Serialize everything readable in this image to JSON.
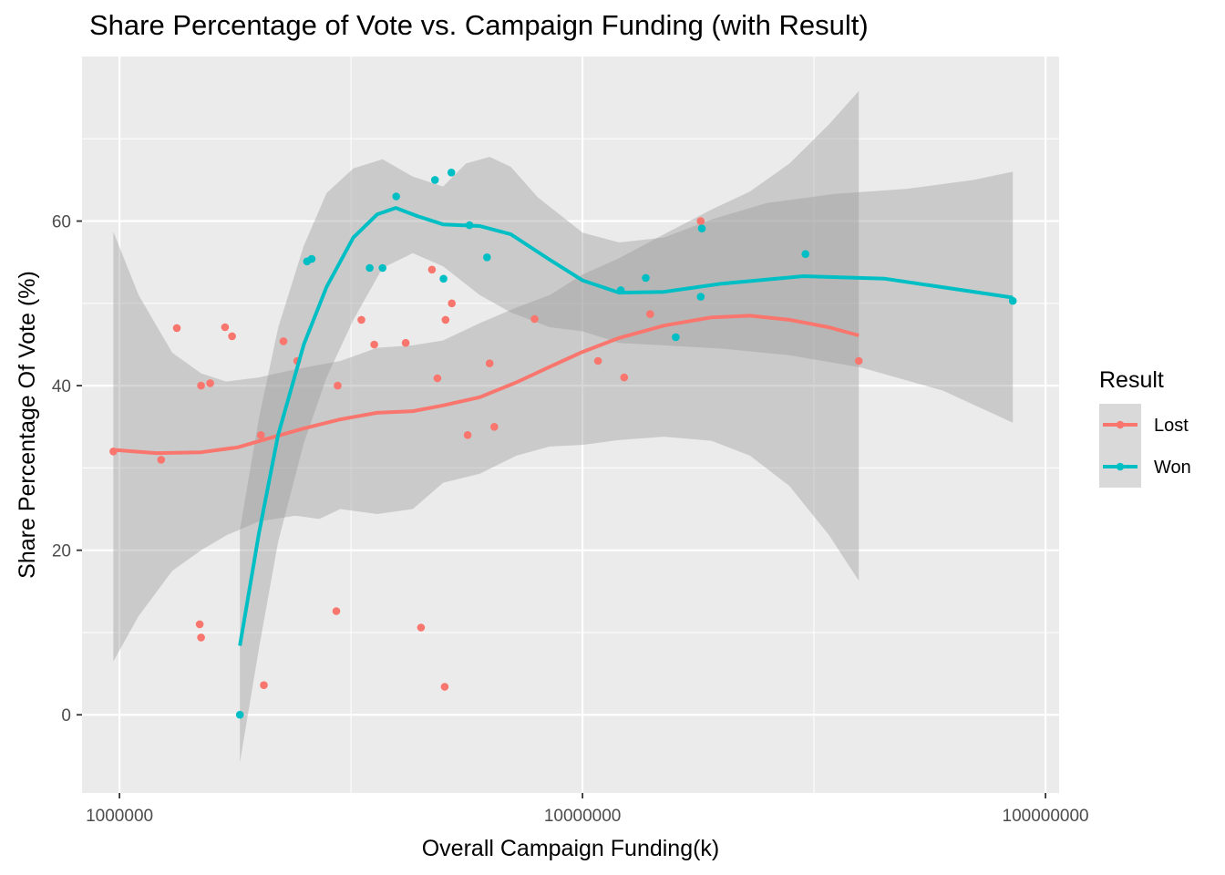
{
  "chart_data": {
    "type": "scatter",
    "title": "Share Percentage of Vote vs. Campaign Funding (with Result)",
    "xlabel": "Overall Campaign Funding(k)",
    "ylabel": "Share Percentage Of Vote (%)",
    "x_scale": "log10",
    "xlim": [
      830000,
      107000000
    ],
    "ylim": [
      -9.5,
      80
    ],
    "x_ticks": [
      1000000,
      10000000,
      100000000
    ],
    "x_tick_labels": [
      "1000000",
      "10000000",
      "100000000"
    ],
    "y_ticks": [
      0,
      20,
      40,
      60
    ],
    "y_tick_labels": [
      "0",
      "20",
      "40",
      "60"
    ],
    "grid": true,
    "legend": {
      "title": "Result",
      "position": "right"
    },
    "colors": {
      "Lost": "#F8766D",
      "Won": "#00BFC4",
      "panel": "#EBEBEB",
      "ribbon": "#999999"
    },
    "series": [
      {
        "name": "Lost",
        "points": [
          [
            970000,
            32
          ],
          [
            1230000,
            31
          ],
          [
            1330000,
            47
          ],
          [
            1490000,
            11
          ],
          [
            1500000,
            9.4
          ],
          [
            1500000,
            40
          ],
          [
            1570000,
            40.3
          ],
          [
            1690000,
            47.1
          ],
          [
            1750000,
            46
          ],
          [
            2020000,
            34
          ],
          [
            2050000,
            3.6
          ],
          [
            2260000,
            45.4
          ],
          [
            2420000,
            43
          ],
          [
            2940000,
            12.6
          ],
          [
            2960000,
            40
          ],
          [
            3330000,
            48
          ],
          [
            3550000,
            45
          ],
          [
            4150000,
            45.2
          ],
          [
            4480000,
            10.6
          ],
          [
            4730000,
            54.1
          ],
          [
            4860000,
            40.9
          ],
          [
            5040000,
            3.4
          ],
          [
            5060000,
            48
          ],
          [
            5220000,
            50
          ],
          [
            5650000,
            34
          ],
          [
            6300000,
            42.7
          ],
          [
            6450000,
            35
          ],
          [
            7880000,
            48.1
          ],
          [
            10800000,
            43
          ],
          [
            12300000,
            41
          ],
          [
            14000000,
            48.7
          ],
          [
            18000000,
            60
          ],
          [
            39500000,
            43
          ]
        ],
        "smooth": [
          [
            970000,
            32.2
          ],
          [
            1200000,
            31.8
          ],
          [
            1500000,
            31.9
          ],
          [
            1800000,
            32.5
          ],
          [
            2100000,
            33.6
          ],
          [
            2500000,
            34.8
          ],
          [
            3000000,
            35.9
          ],
          [
            3600000,
            36.7
          ],
          [
            4300000,
            36.9
          ],
          [
            5000000,
            37.6
          ],
          [
            6000000,
            38.6
          ],
          [
            7200000,
            40.4
          ],
          [
            8500000,
            42.3
          ],
          [
            10000000,
            44.1
          ],
          [
            12000000,
            45.8
          ],
          [
            15000000,
            47.3
          ],
          [
            19000000,
            48.3
          ],
          [
            23000000,
            48.5
          ],
          [
            28000000,
            48
          ],
          [
            34000000,
            47.1
          ],
          [
            39500000,
            46.1
          ]
        ],
        "band_upper": [
          [
            970000,
            58.7
          ],
          [
            1100000,
            51
          ],
          [
            1300000,
            44
          ],
          [
            1500000,
            41.5
          ],
          [
            1700000,
            40.5
          ],
          [
            2000000,
            41
          ],
          [
            2400000,
            42
          ],
          [
            3000000,
            43
          ],
          [
            3600000,
            44.6
          ],
          [
            4300000,
            44.9
          ],
          [
            5000000,
            45.5
          ],
          [
            6000000,
            47.6
          ],
          [
            7200000,
            49.5
          ],
          [
            8500000,
            51
          ],
          [
            10000000,
            53.5
          ],
          [
            12000000,
            55.5
          ],
          [
            15000000,
            58.4
          ],
          [
            19000000,
            61.4
          ],
          [
            23000000,
            63.6
          ],
          [
            28000000,
            67
          ],
          [
            34000000,
            71.7
          ],
          [
            39500000,
            75.8
          ]
        ],
        "band_lower": [
          [
            970000,
            6.5
          ],
          [
            1100000,
            12
          ],
          [
            1300000,
            17.5
          ],
          [
            1500000,
            20
          ],
          [
            1700000,
            21.8
          ],
          [
            2000000,
            23.5
          ],
          [
            2400000,
            24.2
          ],
          [
            2700000,
            23.8
          ],
          [
            3000000,
            25
          ],
          [
            3600000,
            24.4
          ],
          [
            4300000,
            25
          ],
          [
            5000000,
            28.2
          ],
          [
            6000000,
            29.3
          ],
          [
            7200000,
            31.5
          ],
          [
            8500000,
            32.6
          ],
          [
            10000000,
            32.8
          ],
          [
            12000000,
            33.4
          ],
          [
            15000000,
            33.8
          ],
          [
            19000000,
            33.3
          ],
          [
            23000000,
            31.5
          ],
          [
            28000000,
            27.8
          ],
          [
            34000000,
            21.9
          ],
          [
            39500000,
            16.3
          ]
        ]
      },
      {
        "name": "Won",
        "points": [
          [
            1820000,
            0
          ],
          [
            2540000,
            55.1
          ],
          [
            2600000,
            55.4
          ],
          [
            3470000,
            54.3
          ],
          [
            3700000,
            54.3
          ],
          [
            3960000,
            63
          ],
          [
            4800000,
            65
          ],
          [
            5010000,
            53
          ],
          [
            5210000,
            65.9
          ],
          [
            5700000,
            59.5
          ],
          [
            6220000,
            55.6
          ],
          [
            12100000,
            51.6
          ],
          [
            13700000,
            53.1
          ],
          [
            15900000,
            45.9
          ],
          [
            18000000,
            50.8
          ],
          [
            18100000,
            59.1
          ],
          [
            30300000,
            56
          ],
          [
            85000000,
            50.3
          ]
        ],
        "smooth": [
          [
            1820000,
            8.4
          ],
          [
            2000000,
            22
          ],
          [
            2200000,
            34
          ],
          [
            2500000,
            45
          ],
          [
            2800000,
            52
          ],
          [
            3200000,
            58
          ],
          [
            3600000,
            60.8
          ],
          [
            3950000,
            61.6
          ],
          [
            4400000,
            60.6
          ],
          [
            5000000,
            59.6
          ],
          [
            6000000,
            59.4
          ],
          [
            7000000,
            58.4
          ],
          [
            8500000,
            55.3
          ],
          [
            10000000,
            52.8
          ],
          [
            12000000,
            51.3
          ],
          [
            15000000,
            51.4
          ],
          [
            20000000,
            52.4
          ],
          [
            30000000,
            53.3
          ],
          [
            45000000,
            53
          ],
          [
            85000000,
            50.7
          ]
        ],
        "band_upper": [
          [
            1820000,
            22.5
          ],
          [
            2000000,
            36
          ],
          [
            2200000,
            47
          ],
          [
            2500000,
            57
          ],
          [
            2800000,
            63.4
          ],
          [
            3200000,
            66.4
          ],
          [
            3700000,
            67.5
          ],
          [
            4300000,
            65.4
          ],
          [
            5000000,
            64.2
          ],
          [
            5600000,
            67
          ],
          [
            6300000,
            67.8
          ],
          [
            7000000,
            66.6
          ],
          [
            8000000,
            62.9
          ],
          [
            10000000,
            58.6
          ],
          [
            12000000,
            57.4
          ],
          [
            15000000,
            58
          ],
          [
            19000000,
            60.2
          ],
          [
            25000000,
            62.2
          ],
          [
            35000000,
            63.3
          ],
          [
            50000000,
            63.9
          ],
          [
            70000000,
            65
          ],
          [
            85000000,
            66
          ]
        ],
        "band_lower": [
          [
            1820000,
            -5.8
          ],
          [
            2000000,
            8
          ],
          [
            2200000,
            21
          ],
          [
            2500000,
            33
          ],
          [
            2800000,
            41
          ],
          [
            3200000,
            48
          ],
          [
            3700000,
            54.3
          ],
          [
            4300000,
            56.1
          ],
          [
            5000000,
            54.5
          ],
          [
            6000000,
            51
          ],
          [
            7000000,
            48.9
          ],
          [
            8500000,
            47.1
          ],
          [
            10000000,
            46.6
          ],
          [
            12000000,
            45.2
          ],
          [
            15000000,
            44.9
          ],
          [
            20000000,
            44.5
          ],
          [
            28000000,
            43.7
          ],
          [
            40000000,
            42.2
          ],
          [
            60000000,
            39.4
          ],
          [
            85000000,
            35.5
          ]
        ]
      }
    ]
  }
}
